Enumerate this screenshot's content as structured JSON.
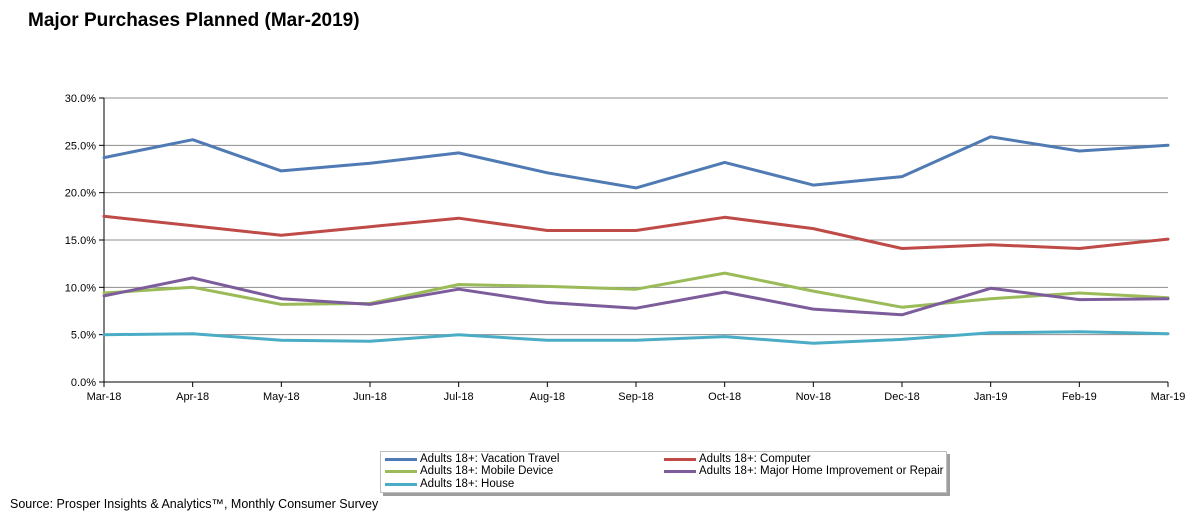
{
  "title": "Major Purchases Planned (Mar-2019)",
  "source": "Source: Prosper Insights & Analytics™, Monthly Consumer Survey",
  "chart_data": {
    "type": "line",
    "title": "Major Purchases Planned (Mar-2019)",
    "xlabel": "",
    "ylabel": "",
    "ylim": [
      0,
      30
    ],
    "grid": true,
    "y_ticks": [
      "0.0%",
      "5.0%",
      "10.0%",
      "15.0%",
      "20.0%",
      "25.0%",
      "30.0%"
    ],
    "x": [
      "Mar-18",
      "Apr-18",
      "May-18",
      "Jun-18",
      "Jul-18",
      "Aug-18",
      "Sep-18",
      "Oct-18",
      "Nov-18",
      "Dec-18",
      "Jan-19",
      "Feb-19",
      "Mar-19"
    ],
    "legend_position": "bottom",
    "series": [
      {
        "name": "Adults 18+: Vacation Travel",
        "color": "#4f7ab3",
        "values": [
          23.7,
          25.6,
          22.3,
          23.1,
          24.2,
          22.1,
          20.5,
          23.2,
          20.8,
          21.7,
          25.9,
          24.4,
          25.0
        ]
      },
      {
        "name": "Adults 18+: Computer",
        "color": "#bf4b48",
        "values": [
          17.5,
          16.5,
          15.5,
          16.4,
          17.3,
          16.0,
          16.0,
          17.4,
          16.2,
          14.1,
          14.5,
          14.1,
          15.1
        ]
      },
      {
        "name": "Adults 18+: Mobile Device",
        "color": "#9bbb59",
        "values": [
          9.4,
          10.0,
          8.2,
          8.3,
          10.3,
          10.1,
          9.8,
          11.5,
          9.6,
          7.9,
          8.8,
          9.4,
          8.9
        ]
      },
      {
        "name": "Adults 18+: Major Home Improvement or Repair",
        "color": "#7d5c9b",
        "values": [
          9.1,
          11.0,
          8.8,
          8.2,
          9.8,
          8.4,
          7.8,
          9.5,
          7.7,
          7.1,
          9.9,
          8.7,
          8.8
        ]
      },
      {
        "name": "Adults 18+: House",
        "color": "#4bacc6",
        "values": [
          5.0,
          5.1,
          4.4,
          4.3,
          5.0,
          4.4,
          4.4,
          4.8,
          4.1,
          4.5,
          5.2,
          5.3,
          5.1
        ]
      }
    ]
  }
}
